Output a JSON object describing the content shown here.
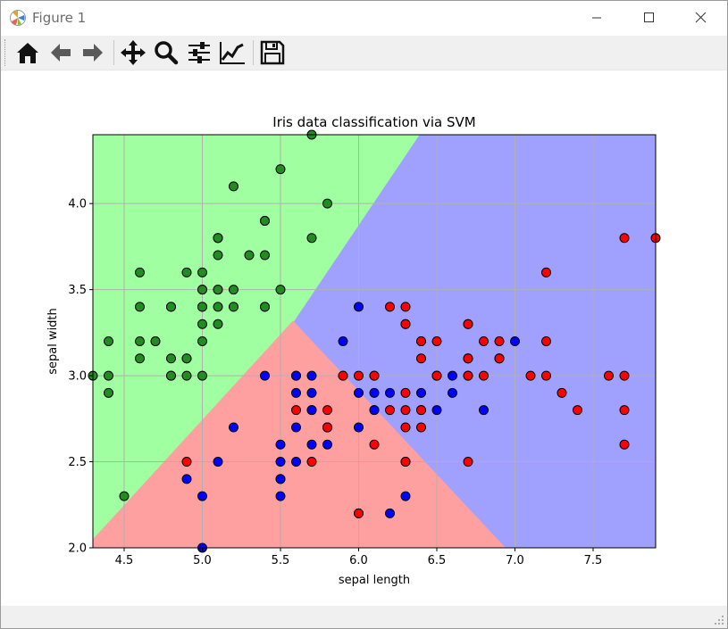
{
  "window": {
    "title": "Figure 1"
  },
  "toolbar": {
    "buttons": [
      {
        "name": "home-button",
        "icon": "home-icon",
        "tooltip": "Reset original view"
      },
      {
        "name": "back-button",
        "icon": "arrow-left-icon",
        "tooltip": "Back"
      },
      {
        "name": "forward-button",
        "icon": "arrow-right-icon",
        "tooltip": "Forward"
      },
      {
        "name": "pan-button",
        "icon": "move-icon",
        "tooltip": "Pan"
      },
      {
        "name": "zoom-button",
        "icon": "magnifier-icon",
        "tooltip": "Zoom"
      },
      {
        "name": "subplots-button",
        "icon": "sliders-icon",
        "tooltip": "Configure subplots"
      },
      {
        "name": "axes-button",
        "icon": "line-chart-icon",
        "tooltip": "Edit axis"
      },
      {
        "name": "save-button",
        "icon": "floppy-disk-icon",
        "tooltip": "Save"
      }
    ]
  },
  "colors": {
    "region_setosa": "#a0ffa0",
    "region_versicolor": "#ffa0a0",
    "region_virginica": "#a0a0ff",
    "point_setosa": "#228b22",
    "point_versicolor": "#0000ff",
    "point_virginica": "#ff0000"
  },
  "chart_data": {
    "type": "scatter",
    "title": "Iris data classification via SVM",
    "xlabel": "sepal length",
    "ylabel": "sepal width",
    "xlim": [
      4.3,
      7.9
    ],
    "ylim": [
      2.0,
      4.4
    ],
    "xticks": [
      "4.5",
      "5.0",
      "5.5",
      "6.0",
      "6.5",
      "7.0",
      "7.5"
    ],
    "yticks": [
      "2.0",
      "2.5",
      "3.0",
      "3.5",
      "4.0"
    ],
    "grid": true,
    "regions": "decision regions of three classes (green: upper-left, red: lower-middle, blue: right)",
    "series": [
      {
        "class": 0,
        "points": [
          [
            5.1,
            3.5
          ],
          [
            4.9,
            3.0
          ],
          [
            4.7,
            3.2
          ],
          [
            4.6,
            3.1
          ],
          [
            5.0,
            3.6
          ],
          [
            5.4,
            3.9
          ],
          [
            4.6,
            3.4
          ],
          [
            5.0,
            3.4
          ],
          [
            4.4,
            2.9
          ],
          [
            4.9,
            3.1
          ],
          [
            5.4,
            3.7
          ],
          [
            4.8,
            3.4
          ],
          [
            4.8,
            3.0
          ],
          [
            4.3,
            3.0
          ],
          [
            5.8,
            4.0
          ],
          [
            5.7,
            4.4
          ],
          [
            5.4,
            3.9
          ],
          [
            5.1,
            3.5
          ],
          [
            5.7,
            3.8
          ],
          [
            5.1,
            3.8
          ],
          [
            5.4,
            3.4
          ],
          [
            5.1,
            3.7
          ],
          [
            4.6,
            3.6
          ],
          [
            5.1,
            3.3
          ],
          [
            4.8,
            3.4
          ],
          [
            5.0,
            3.0
          ],
          [
            5.0,
            3.4
          ],
          [
            5.2,
            3.5
          ],
          [
            5.2,
            3.4
          ],
          [
            4.7,
            3.2
          ],
          [
            4.8,
            3.1
          ],
          [
            5.4,
            3.4
          ],
          [
            5.2,
            4.1
          ],
          [
            5.5,
            4.2
          ],
          [
            4.9,
            3.1
          ],
          [
            5.0,
            3.2
          ],
          [
            5.5,
            3.5
          ],
          [
            4.9,
            3.6
          ],
          [
            4.4,
            3.0
          ],
          [
            5.1,
            3.4
          ],
          [
            5.0,
            3.5
          ],
          [
            4.5,
            2.3
          ],
          [
            4.4,
            3.2
          ],
          [
            5.0,
            3.5
          ],
          [
            5.1,
            3.8
          ],
          [
            4.8,
            3.0
          ],
          [
            5.1,
            3.8
          ],
          [
            4.6,
            3.2
          ],
          [
            5.3,
            3.7
          ],
          [
            5.0,
            3.3
          ]
        ]
      },
      {
        "class": 1,
        "points": [
          [
            7.0,
            3.2
          ],
          [
            6.4,
            3.2
          ],
          [
            6.9,
            3.1
          ],
          [
            5.5,
            2.3
          ],
          [
            6.5,
            2.8
          ],
          [
            5.7,
            2.8
          ],
          [
            6.3,
            3.3
          ],
          [
            4.9,
            2.4
          ],
          [
            6.6,
            2.9
          ],
          [
            5.2,
            2.7
          ],
          [
            5.0,
            2.0
          ],
          [
            5.9,
            3.0
          ],
          [
            6.0,
            2.2
          ],
          [
            6.1,
            2.9
          ],
          [
            5.6,
            2.9
          ],
          [
            6.7,
            3.1
          ],
          [
            5.6,
            3.0
          ],
          [
            5.8,
            2.7
          ],
          [
            6.2,
            2.2
          ],
          [
            5.6,
            2.5
          ],
          [
            5.9,
            3.2
          ],
          [
            6.1,
            2.8
          ],
          [
            6.3,
            2.5
          ],
          [
            6.1,
            2.8
          ],
          [
            6.4,
            2.9
          ],
          [
            6.6,
            3.0
          ],
          [
            6.8,
            2.8
          ],
          [
            6.7,
            3.0
          ],
          [
            6.0,
            2.9
          ],
          [
            5.7,
            2.6
          ],
          [
            5.5,
            2.4
          ],
          [
            5.5,
            2.4
          ],
          [
            5.8,
            2.7
          ],
          [
            6.0,
            2.7
          ],
          [
            5.4,
            3.0
          ],
          [
            6.0,
            3.4
          ],
          [
            6.7,
            3.1
          ],
          [
            6.3,
            2.3
          ],
          [
            5.6,
            3.0
          ],
          [
            5.5,
            2.5
          ],
          [
            5.5,
            2.6
          ],
          [
            6.1,
            3.0
          ],
          [
            5.8,
            2.6
          ],
          [
            5.0,
            2.3
          ],
          [
            5.6,
            2.7
          ],
          [
            5.7,
            3.0
          ],
          [
            5.7,
            2.9
          ],
          [
            6.2,
            2.9
          ],
          [
            5.1,
            2.5
          ],
          [
            5.7,
            2.8
          ]
        ]
      },
      {
        "class": 2,
        "points": [
          [
            6.3,
            3.3
          ],
          [
            5.8,
            2.7
          ],
          [
            7.1,
            3.0
          ],
          [
            6.3,
            2.9
          ],
          [
            6.5,
            3.0
          ],
          [
            7.6,
            3.0
          ],
          [
            4.9,
            2.5
          ],
          [
            7.3,
            2.9
          ],
          [
            6.7,
            2.5
          ],
          [
            7.2,
            3.6
          ],
          [
            6.5,
            3.2
          ],
          [
            6.4,
            2.7
          ],
          [
            6.8,
            3.0
          ],
          [
            5.7,
            2.5
          ],
          [
            5.8,
            2.8
          ],
          [
            6.4,
            3.2
          ],
          [
            6.5,
            3.0
          ],
          [
            7.7,
            3.8
          ],
          [
            7.7,
            2.6
          ],
          [
            6.0,
            2.2
          ],
          [
            6.9,
            3.2
          ],
          [
            5.6,
            2.8
          ],
          [
            7.7,
            2.8
          ],
          [
            6.3,
            2.7
          ],
          [
            6.7,
            3.3
          ],
          [
            7.2,
            3.2
          ],
          [
            6.2,
            2.8
          ],
          [
            6.1,
            3.0
          ],
          [
            6.4,
            2.8
          ],
          [
            7.2,
            3.0
          ],
          [
            7.4,
            2.8
          ],
          [
            7.9,
            3.8
          ],
          [
            6.4,
            2.8
          ],
          [
            6.3,
            2.8
          ],
          [
            6.1,
            2.6
          ],
          [
            7.7,
            3.0
          ],
          [
            6.3,
            3.4
          ],
          [
            6.4,
            3.1
          ],
          [
            6.0,
            3.0
          ],
          [
            6.9,
            3.1
          ],
          [
            6.7,
            3.1
          ],
          [
            6.9,
            3.1
          ],
          [
            5.8,
            2.7
          ],
          [
            6.8,
            3.2
          ],
          [
            6.7,
            3.3
          ],
          [
            6.7,
            3.0
          ],
          [
            6.3,
            2.5
          ],
          [
            6.5,
            3.0
          ],
          [
            6.2,
            3.4
          ],
          [
            5.9,
            3.0
          ]
        ]
      }
    ]
  }
}
